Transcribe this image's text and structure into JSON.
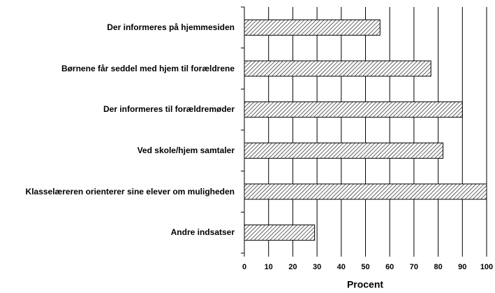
{
  "chart_data": {
    "type": "bar",
    "orientation": "horizontal",
    "categories": [
      "Der informeres på hjemmesiden",
      "Børnene får seddel med hjem til forældrene",
      "Der informeres til forældremøder",
      "Ved skole/hjem samtaler",
      "Klasselæreren orienterer sine elever om muligheden",
      "Andre indsatser"
    ],
    "values": [
      56,
      77,
      90,
      82,
      100,
      29
    ],
    "xlabel": "Procent",
    "xlim": [
      0,
      100
    ],
    "xticks": [
      0,
      10,
      20,
      30,
      40,
      50,
      60,
      70,
      80,
      90,
      100
    ],
    "grid": true
  }
}
